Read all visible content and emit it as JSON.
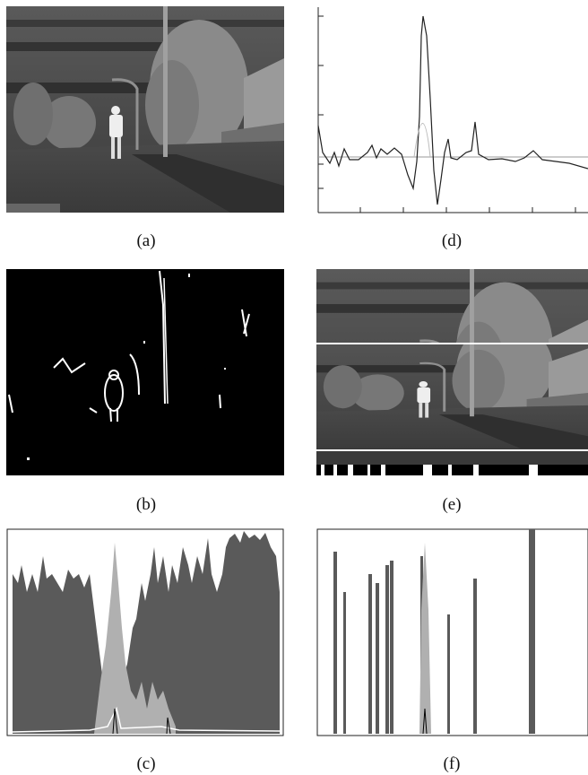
{
  "captions": [
    "(a)",
    "(b)",
    "(c)",
    "(d)",
    "(e)",
    "(f)"
  ]
}
